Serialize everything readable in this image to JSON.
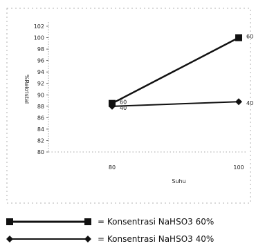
{
  "chart_data": {
    "type": "line",
    "title": "",
    "xlabel": "Suhu",
    "ylabel": "%Rekristal",
    "x": [
      80,
      100
    ],
    "ylim": [
      80,
      102
    ],
    "yticks": [
      80,
      82,
      84,
      86,
      88,
      90,
      92,
      94,
      96,
      98,
      100,
      102
    ],
    "grid": false,
    "series": [
      {
        "name": "= Konsentrasi NaHSO3 60%",
        "values": [
          88.5,
          100
        ],
        "data_labels": [
          "60",
          "60"
        ],
        "marker": "square",
        "color": "#111111"
      },
      {
        "name": "= Konsentrasi NaHSO3 40%",
        "values": [
          88,
          88.8
        ],
        "data_labels": [
          "40",
          "40"
        ],
        "marker": "diamond",
        "color": "#111111"
      }
    ],
    "legend": "bottom"
  }
}
